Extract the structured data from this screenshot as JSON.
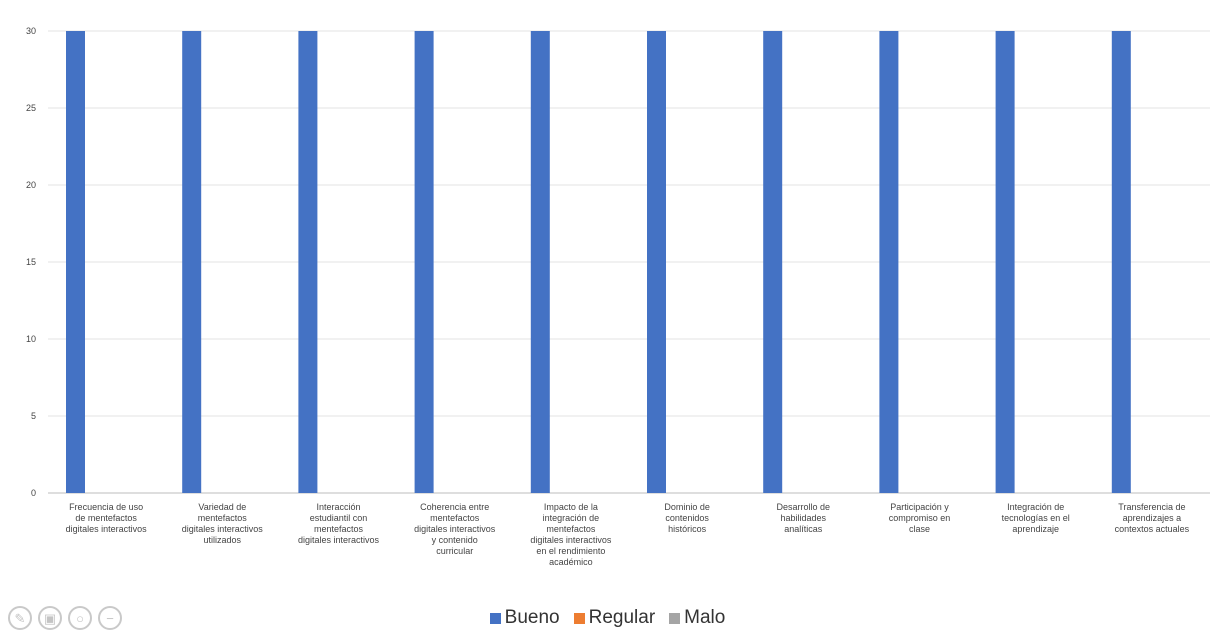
{
  "chart_data": {
    "type": "bar",
    "categories": [
      "Frecuencia de uso de mentefactos digitales interactivos",
      "Variedad de mentefactos digitales interactivos utilizados",
      "Interacción estudiantil con mentefactos digitales interactivos",
      "Coherencia entre mentefactos digitales interactivos y contenido curricular",
      "Impacto de la integración de mentefactos digitales interactivos en el rendimiento académico",
      "Dominio de contenidos históricos",
      "Desarrollo de habilidades analíticas",
      "Participación y compromiso en clase",
      "Integración de tecnologías en el aprendizaje",
      "Transferencia de aprendizajes a contextos actuales"
    ],
    "category_lines": [
      [
        "Frecuencia de uso",
        "de mentefactos",
        "digitales interactivos"
      ],
      [
        "Variedad de",
        "mentefactos",
        "digitales interactivos",
        "utilizados"
      ],
      [
        "Interacción",
        "estudiantil con",
        "mentefactos",
        "digitales interactivos"
      ],
      [
        "Coherencia entre",
        "mentefactos",
        "digitales interactivos",
        "y contenido",
        "curricular"
      ],
      [
        "Impacto de la",
        "integración de",
        "mentefactos",
        "digitales interactivos",
        "en el rendimiento",
        "académico"
      ],
      [
        "Dominio de",
        "contenidos",
        "históricos"
      ],
      [
        "Desarrollo de",
        "habilidades",
        "analíticas"
      ],
      [
        "Participación y",
        "compromiso en",
        "clase"
      ],
      [
        "Integración de",
        "tecnologías en el",
        "aprendizaje"
      ],
      [
        "Transferencia de",
        "aprendizajes a",
        "contextos actuales"
      ]
    ],
    "series": [
      {
        "name": "Bueno",
        "color": "#4472c4",
        "values": [
          30,
          30,
          30,
          30,
          30,
          30,
          30,
          30,
          30,
          30
        ]
      },
      {
        "name": "Regular",
        "color": "#ed7d31",
        "values": [
          0,
          0,
          0,
          0,
          0,
          0,
          0,
          0,
          0,
          0
        ]
      },
      {
        "name": "Malo",
        "color": "#a5a5a5",
        "values": [
          0,
          0,
          0,
          0,
          0,
          0,
          0,
          0,
          0,
          0
        ]
      }
    ],
    "ylim": [
      0,
      30
    ],
    "yticks": [
      "0",
      "5",
      "10",
      "15",
      "20",
      "25",
      "30"
    ],
    "grid": true,
    "legend_position": "bottom-center",
    "title": "",
    "xlabel": "",
    "ylabel": ""
  },
  "toolbar": {
    "icons": [
      "pencil-icon",
      "save-icon",
      "zoom-icon",
      "minus-icon"
    ]
  }
}
